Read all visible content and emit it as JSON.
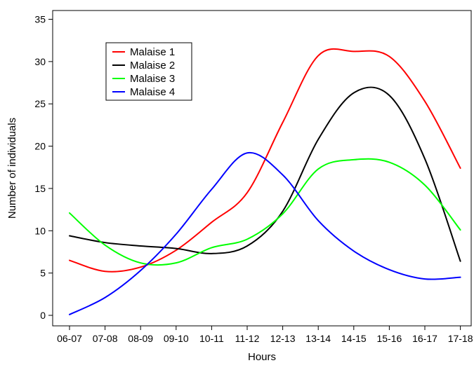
{
  "chart_data": {
    "type": "line",
    "xlabel": "Hours",
    "ylabel": "Number of individuals",
    "categories": [
      "06-07",
      "07-08",
      "08-09",
      "09-10",
      "10-11",
      "11-12",
      "12-13",
      "13-14",
      "14-15",
      "15-16",
      "16-17",
      "17-18"
    ],
    "ylim": [
      0,
      35
    ],
    "yticks": [
      0,
      5,
      10,
      15,
      20,
      25,
      30,
      35
    ],
    "grid": false,
    "legend_position": "top-left",
    "series": [
      {
        "name": "Malaise 1",
        "color": "#ff0000",
        "values": [
          6.5,
          5.2,
          5.7,
          7.7,
          11.0,
          14.5,
          22.8,
          30.7,
          31.2,
          30.6,
          25.3,
          17.4
        ]
      },
      {
        "name": "Malaise 2",
        "color": "#000000",
        "values": [
          9.4,
          8.6,
          8.2,
          7.9,
          7.3,
          8.2,
          12.3,
          20.8,
          26.3,
          26.0,
          18.5,
          6.4
        ]
      },
      {
        "name": "Malaise 3",
        "color": "#00ff00",
        "values": [
          12.1,
          8.3,
          6.2,
          6.2,
          8.0,
          9.0,
          12.0,
          17.3,
          18.4,
          18.1,
          15.4,
          10.1
        ]
      },
      {
        "name": "Malaise 4",
        "color": "#0000ff",
        "values": [
          0.1,
          2.1,
          5.3,
          9.6,
          14.9,
          19.2,
          16.6,
          11.2,
          7.6,
          5.4,
          4.3,
          4.5
        ]
      }
    ]
  }
}
